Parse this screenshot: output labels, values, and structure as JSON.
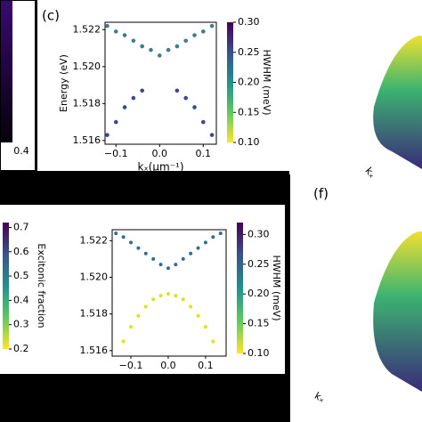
{
  "labels": {
    "panel_c": "(c)",
    "panel_f": "(f)",
    "left_tick": "0.4",
    "kx_top": "kₓ",
    "kx_bottom": "kₓ"
  },
  "chart_data": [
    {
      "type": "scatter",
      "ylabel": "Energy (eV)",
      "xlabel": "kₓ(μm⁻¹)",
      "colorbar_label": "HWHM (meV)",
      "xlim": [
        -0.125,
        0.13
      ],
      "ylim": [
        1.5158,
        1.5224
      ],
      "xticks": [
        {
          "value": -0.1,
          "label": "−0.1"
        },
        {
          "value": 0,
          "label": "0.0"
        },
        0.1
      ],
      "yticks": [
        1.516,
        1.518,
        {
          "value": 1.52,
          "label": "1.520"
        },
        1.522
      ],
      "clim": [
        0.1,
        0.3
      ],
      "cticks": [
        {
          "value": 0.1,
          "label": "0.10"
        },
        0.15,
        {
          "value": 0.2,
          "label": "0.20"
        },
        0.25,
        {
          "value": 0.3,
          "label": "0.30"
        }
      ],
      "series": [
        {
          "color": "#3e7d8c",
          "x": [
            -0.12,
            -0.1,
            -0.08,
            -0.06,
            -0.04,
            -0.02,
            0,
            0.02,
            0.04,
            0.06,
            0.08,
            0.1,
            0.12
          ],
          "values": [
            1.5222,
            1.5219,
            1.5217,
            1.5214,
            1.5211,
            1.5209,
            1.5206,
            1.5209,
            1.5211,
            1.5214,
            1.5217,
            1.5219,
            1.5222
          ]
        },
        {
          "color": "#3b4a8b",
          "x": [
            -0.12,
            -0.1,
            -0.08,
            -0.06,
            -0.04
          ],
          "values": [
            1.5163,
            1.517,
            1.5178,
            1.5183,
            1.5187
          ]
        },
        {
          "color": "#3b4a8b",
          "x": [
            0.04,
            0.06,
            0.08,
            0.1,
            0.12
          ],
          "values": [
            1.5187,
            1.5183,
            1.5178,
            1.517,
            1.5163
          ]
        }
      ]
    },
    {
      "type": "scatter",
      "xlabel": "kₓ(μm⁻¹)",
      "colorbar_label": "HWHM (meV)",
      "colorbar2_label": "Excitonic fraction",
      "xlim": [
        -0.15,
        0.155
      ],
      "ylim": [
        1.5157,
        1.5226
      ],
      "xticks": [
        {
          "value": -0.1,
          "label": "−0.1"
        },
        {
          "value": 0,
          "label": "0.0"
        },
        0.1
      ],
      "yticks": [
        1.516,
        1.518,
        {
          "value": 1.52,
          "label": "1.520"
        },
        1.522
      ],
      "clim": [
        0.1,
        0.32
      ],
      "cticks": [
        {
          "value": 0.1,
          "label": "0.10"
        },
        0.15,
        {
          "value": 0.2,
          "label": "0.20"
        },
        0.25,
        {
          "value": 0.3,
          "label": "0.30"
        }
      ],
      "c2lim": [
        0.2,
        0.72
      ],
      "c2ticks": [
        0.2,
        0.3,
        0.4,
        0.5,
        0.6,
        0.7
      ],
      "series": [
        {
          "color": "#2f6e8e",
          "x": [
            -0.14,
            -0.12,
            -0.1,
            -0.08,
            -0.06,
            -0.04,
            -0.02,
            0,
            0.02,
            0.04,
            0.06,
            0.08,
            0.1,
            0.12,
            0.14
          ],
          "values": [
            1.5224,
            1.5222,
            1.5219,
            1.5216,
            1.5213,
            1.521,
            1.5207,
            1.5205,
            1.5207,
            1.521,
            1.5213,
            1.5216,
            1.5219,
            1.5222,
            1.5224
          ]
        },
        {
          "color": "#dde318",
          "x": [
            -0.12,
            -0.1,
            -0.08,
            -0.06,
            -0.04,
            -0.02,
            0,
            0.02,
            0.04,
            0.06,
            0.08,
            0.1,
            0.12
          ],
          "values": [
            1.5165,
            1.5173,
            1.5179,
            1.5184,
            1.5188,
            1.519,
            1.5191,
            1.519,
            1.5188,
            1.5184,
            1.5179,
            1.5173,
            1.5165
          ]
        }
      ]
    }
  ]
}
